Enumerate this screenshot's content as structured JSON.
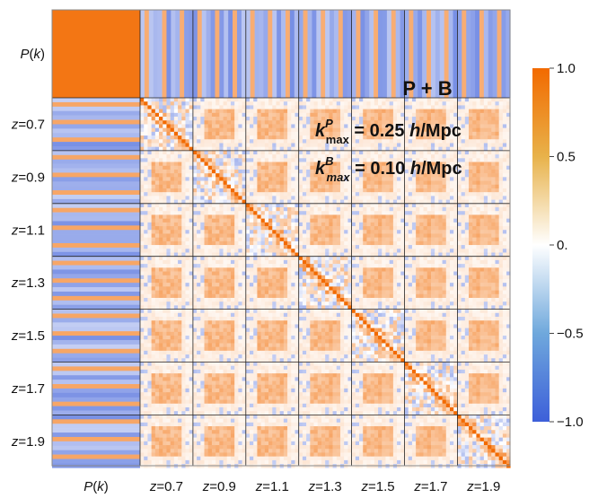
{
  "chart_data": {
    "type": "heatmap",
    "title": "P + B",
    "annotations": [
      {
        "kind": "kmax",
        "superscript": "P",
        "value": "0.25",
        "unit": "Mpc",
        "prefix": "h"
      },
      {
        "kind": "kmax",
        "superscript": "B",
        "value": "0.10",
        "unit": "Mpc",
        "prefix": "h"
      }
    ],
    "blocks": [
      "P(k)",
      "z=0.7",
      "z=0.9",
      "z=1.1",
      "z=1.3",
      "z=1.5",
      "z=1.7",
      "z=1.9"
    ],
    "x_tick_labels": [
      "P(k)",
      "z=0.7",
      "z=0.9",
      "z=1.1",
      "z=1.3",
      "z=1.5",
      "z=1.7",
      "z=1.9"
    ],
    "y_tick_labels": [
      "P(k)",
      "z=0.7",
      "z=0.9",
      "z=1.1",
      "z=1.3",
      "z=1.5",
      "z=1.7",
      "z=1.9"
    ],
    "colorbar": {
      "range": [
        -1.0,
        1.0
      ],
      "ticks": [
        "1.0",
        "0.5",
        "0.",
        "−0.5",
        "−1.0"
      ],
      "tick_values": [
        1.0,
        0.5,
        0.0,
        -0.5,
        -1.0
      ],
      "colors": {
        "neg": "#3d5fd9",
        "mid": "#ffffff",
        "pos": "#f26a00"
      }
    },
    "matrix_description": "correlation matrix; P(k) block strongly positive, diagonal = 1"
  }
}
